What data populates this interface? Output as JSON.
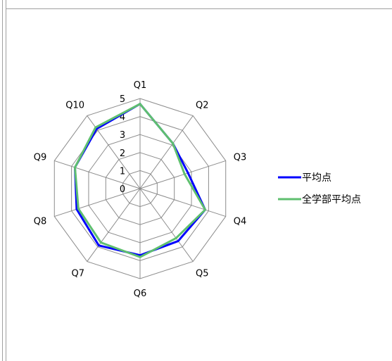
{
  "chart_data": {
    "type": "radar",
    "categories": [
      "Q1",
      "Q2",
      "Q3",
      "Q4",
      "Q5",
      "Q6",
      "Q7",
      "Q8",
      "Q9",
      "Q10"
    ],
    "rlim": [
      0,
      5
    ],
    "ticks": [
      "0",
      "1",
      "2",
      "3",
      "4",
      "5"
    ],
    "grid": true,
    "legend_position": "right",
    "series": [
      {
        "name": "平均点",
        "color": "#0000ff",
        "values": [
          4.7,
          3.1,
          2.8,
          3.8,
          3.6,
          3.7,
          3.9,
          3.7,
          3.8,
          4.1
        ]
      },
      {
        "name": "全学部平均点",
        "color": "#5fbf6f",
        "values": [
          4.7,
          3.1,
          2.6,
          3.8,
          3.4,
          3.8,
          3.7,
          3.6,
          3.8,
          4.2
        ]
      }
    ]
  }
}
